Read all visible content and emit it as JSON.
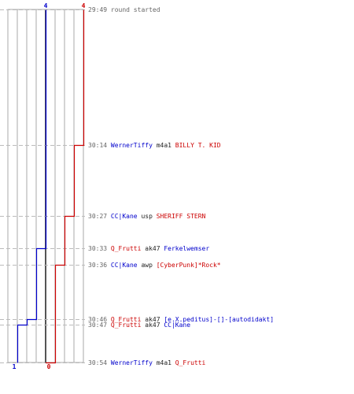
{
  "colors": {
    "team_blue": "#0000cc",
    "team_red": "#cc0000",
    "neutral": "#222222",
    "time": "#666666",
    "grid": "#aaaaaa",
    "divider": "#555555",
    "dash": "#bbbbbb"
  },
  "chart_data": {
    "type": "line",
    "title": "",
    "y_axis": "time",
    "series": [
      {
        "team": "blue",
        "color": "#0000cc",
        "start_label": "4",
        "end_label": "1",
        "times": [
          "29:49",
          "30:33",
          "30:46",
          "30:47",
          "30:54"
        ],
        "players_alive": [
          4,
          3,
          2,
          1,
          1
        ]
      },
      {
        "team": "red",
        "color": "#cc0000",
        "start_label": "4",
        "end_label": "0",
        "times": [
          "29:49",
          "30:14",
          "30:27",
          "30:36",
          "30:54"
        ],
        "players_alive": [
          4,
          3,
          2,
          1,
          0
        ]
      }
    ],
    "events": [
      {
        "time": "29:49",
        "parts": [
          {
            "text": "round started",
            "team": "time"
          }
        ]
      },
      {
        "time": "30:14",
        "parts": [
          {
            "text": "WernerTiffy",
            "team": "blue"
          },
          {
            "text": " m4a1 ",
            "team": "neutral"
          },
          {
            "text": "BILLY T. KID",
            "team": "red"
          }
        ]
      },
      {
        "time": "30:27",
        "parts": [
          {
            "text": "CC|Kane",
            "team": "blue"
          },
          {
            "text": " usp ",
            "team": "neutral"
          },
          {
            "text": "SHERIFF STERN",
            "team": "red"
          }
        ]
      },
      {
        "time": "30:33",
        "parts": [
          {
            "text": "Q_Frutti",
            "team": "red"
          },
          {
            "text": " ak47 ",
            "team": "neutral"
          },
          {
            "text": "Ferkelwemser",
            "team": "blue"
          }
        ]
      },
      {
        "time": "30:36",
        "parts": [
          {
            "text": "CC|Kane",
            "team": "blue"
          },
          {
            "text": " awp ",
            "team": "neutral"
          },
          {
            "text": "[CyberPunk]*Rock*",
            "team": "red"
          }
        ]
      },
      {
        "time": "30:46",
        "parts": [
          {
            "text": "Q_Frutti",
            "team": "red"
          },
          {
            "text": " ak47 ",
            "team": "neutral"
          },
          {
            "text": "[e.X.peditus]-[]-[autodidakt]",
            "team": "blue"
          }
        ]
      },
      {
        "time": "30:47",
        "parts": [
          {
            "text": "Q_Frutti",
            "team": "red"
          },
          {
            "text": " ak47 ",
            "team": "neutral"
          },
          {
            "text": "CC|Kane",
            "team": "blue"
          }
        ]
      },
      {
        "time": "30:54",
        "parts": [
          {
            "text": "WernerTiffy",
            "team": "blue"
          },
          {
            "text": " m4a1 ",
            "team": "neutral"
          },
          {
            "text": "Q_Frutti",
            "team": "red"
          }
        ]
      }
    ]
  }
}
